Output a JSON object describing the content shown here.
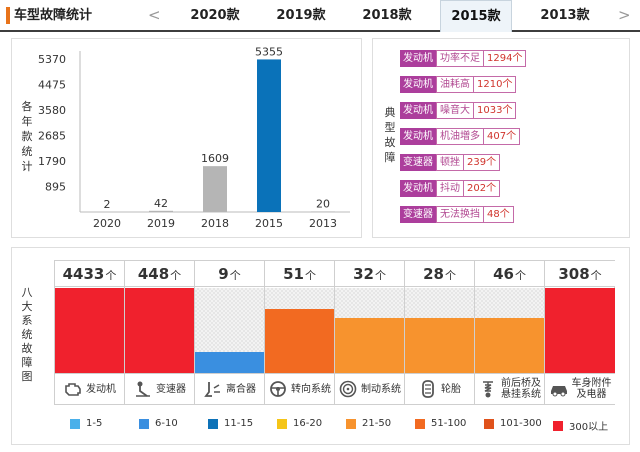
{
  "header": {
    "title": "车型故障统计",
    "prev_arrow": "<",
    "next_arrow": ">",
    "tabs": [
      {
        "label": "2020款",
        "active": false
      },
      {
        "label": "2019款",
        "active": false
      },
      {
        "label": "2018款",
        "active": false
      },
      {
        "label": "2015款",
        "active": true
      },
      {
        "label": "2013款",
        "active": false
      }
    ]
  },
  "yearly_chart": {
    "ylabel": "各年款统计",
    "colors": {
      "default": "#b5b5b5",
      "active": "#0a72b9"
    }
  },
  "chart_data": {
    "type": "bar",
    "categories": [
      "2020",
      "2019",
      "2018",
      "2015",
      "2013"
    ],
    "values": [
      2,
      42,
      1609,
      5355,
      20
    ],
    "highlight": "2015",
    "ylabel": "各年款统计",
    "yticks": [
      895,
      1790,
      2685,
      3580,
      4475,
      5370
    ],
    "ylim": [
      0,
      5370
    ]
  },
  "typical_faults": {
    "label": "典型故障",
    "items": [
      {
        "system": "发动机",
        "desc": "功率不足",
        "count": "1294个"
      },
      {
        "system": "发动机",
        "desc": "油耗高",
        "count": "1210个"
      },
      {
        "system": "发动机",
        "desc": "噪音大",
        "count": "1033个"
      },
      {
        "system": "发动机",
        "desc": "机油増多",
        "count": "407个"
      },
      {
        "system": "变速器",
        "desc": "顿挫",
        "count": "239个"
      },
      {
        "system": "发动机",
        "desc": "抖动",
        "count": "202个"
      },
      {
        "system": "变速器",
        "desc": "无法换挡",
        "count": "48个"
      }
    ]
  },
  "fault_distribution": {
    "label": "八大系统故障图",
    "unit": "个",
    "systems": [
      {
        "count": "4433",
        "name": "发动机",
        "icon": "engine-icon",
        "color": "#f0212d",
        "fill": 1.0
      },
      {
        "count": "448",
        "name": "变速器",
        "icon": "gear-shift-icon",
        "color": "#f0212d",
        "fill": 1.0
      },
      {
        "count": "9",
        "name": "离合器",
        "icon": "clutch-pedal-icon",
        "color": "#3a8fe0",
        "fill": 0.25
      },
      {
        "count": "51",
        "name": "转向系统",
        "icon": "steering-wheel-icon",
        "color": "#f26a21",
        "fill": 0.75
      },
      {
        "count": "32",
        "name": "制动系统",
        "icon": "brake-disc-icon",
        "color": "#f7932e",
        "fill": 0.65
      },
      {
        "count": "28",
        "name": "轮胎",
        "icon": "tire-icon",
        "color": "#f7932e",
        "fill": 0.65
      },
      {
        "count": "46",
        "name": "前后桥及\n悬挂系统",
        "icon": "suspension-icon",
        "color": "#f7932e",
        "fill": 0.65
      },
      {
        "count": "308",
        "name": "车身附件\n及电器",
        "icon": "car-body-icon",
        "color": "#f0212d",
        "fill": 1.0
      }
    ],
    "legend": [
      {
        "label": "1-5",
        "color": "#4ab0ea"
      },
      {
        "label": "6-10",
        "color": "#3a8fe0"
      },
      {
        "label": "11-15",
        "color": "#0d72b8"
      },
      {
        "label": "16-20",
        "color": "#f5c518"
      },
      {
        "label": "21-50",
        "color": "#f7932e"
      },
      {
        "label": "51-100",
        "color": "#f26a21"
      },
      {
        "label": "101-300",
        "color": "#e0521b"
      },
      {
        "label": "300以上",
        "color": "#f0212d"
      }
    ]
  }
}
